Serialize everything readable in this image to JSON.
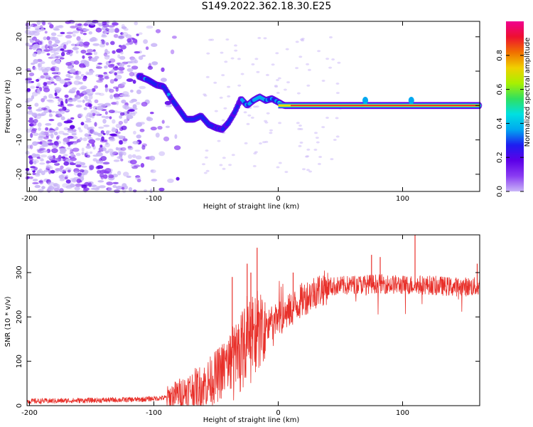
{
  "page_title": "S149.2022.362.18.30.E25",
  "colors": {
    "snr_line": "#e8302a",
    "axis": "#000000",
    "colormap": [
      "#ffffff",
      "#c9b6f7",
      "#8a3cf2",
      "#5c00e8",
      "#1d1ef0",
      "#00a8f0",
      "#00e0e0",
      "#30e060",
      "#a8f000",
      "#f0d000",
      "#f07000",
      "#ee1030",
      "#f00090"
    ]
  },
  "chart_data": [
    {
      "id": "spectrogram",
      "type": "heatmap",
      "xlabel": "Height of straight line (km)",
      "ylabel": "Frequency (Hz)",
      "xlim": [
        -202,
        162
      ],
      "ylim": [
        -25,
        24.5
      ],
      "xticks": [
        -200,
        -100,
        0,
        100
      ],
      "xtick_labels": [
        "-200",
        "-100",
        "0",
        "100"
      ],
      "yticks": [
        -20,
        -10,
        0,
        10,
        20
      ],
      "ytick_labels": [
        "-20",
        "-10",
        "0",
        "10",
        "20"
      ],
      "colorbar": {
        "label": "Normalized spectral amplitude",
        "range": [
          0,
          1
        ],
        "ticks": [
          0.0,
          0.2,
          0.4,
          0.6,
          0.8
        ],
        "tick_labels": [
          "0.0",
          "0.2",
          "0.4",
          "0.6",
          "0.8"
        ]
      },
      "ridge": {
        "x": [
          -112,
          -105,
          -98,
          -92,
          -86,
          -80,
          -74,
          -68,
          -62,
          -56,
          -50,
          -45,
          -40,
          -35,
          -30,
          -25,
          -20,
          -15,
          -10,
          -5,
          0,
          5,
          10,
          20,
          40,
          60,
          80,
          100,
          120,
          162
        ],
        "freq": [
          8.5,
          7.5,
          6.0,
          5.5,
          2.0,
          -1.0,
          -4.0,
          -4.0,
          -3.0,
          -5.5,
          -6.5,
          -7.0,
          -5.0,
          -2.0,
          2.0,
          0.0,
          1.5,
          2.5,
          1.5,
          2.0,
          1.0,
          0.0,
          0.0,
          0.0,
          0.0,
          0.0,
          0.0,
          0.0,
          0.0,
          0.0
        ]
      }
    },
    {
      "id": "snr",
      "type": "line",
      "xlabel": "Height of straight line (km)",
      "ylabel": "SNR (10 * v/v)",
      "xlim": [
        -202,
        162
      ],
      "ylim": [
        0,
        385
      ],
      "xticks": [
        -200,
        -100,
        0,
        100
      ],
      "xtick_labels": [
        "-200",
        "-100",
        "0",
        "100"
      ],
      "yticks": [
        0,
        100,
        200,
        300
      ],
      "ytick_labels": [
        "0",
        "100",
        "200",
        "300"
      ],
      "envelope": {
        "x": [
          -202,
          -150,
          -110,
          -90,
          -80,
          -60,
          -50,
          -40,
          -30,
          -20,
          -10,
          0,
          10,
          20,
          30,
          40,
          50,
          60,
          80,
          100,
          120,
          140,
          162
        ],
        "value": [
          10,
          12,
          14,
          18,
          28,
          45,
          65,
          95,
          135,
          160,
          175,
          195,
          215,
          240,
          258,
          268,
          270,
          272,
          275,
          272,
          272,
          268,
          268
        ]
      },
      "spikes": [
        {
          "x": -17,
          "value": 356
        },
        {
          "x": -25,
          "value": 320
        },
        {
          "x": -37,
          "value": 290
        },
        {
          "x": -22,
          "value": 300
        },
        {
          "x": 12,
          "value": 300
        },
        {
          "x": 75,
          "value": 340
        },
        {
          "x": 82,
          "value": 335
        },
        {
          "x": 110,
          "value": 385
        },
        {
          "x": 160,
          "value": 320
        }
      ]
    }
  ]
}
